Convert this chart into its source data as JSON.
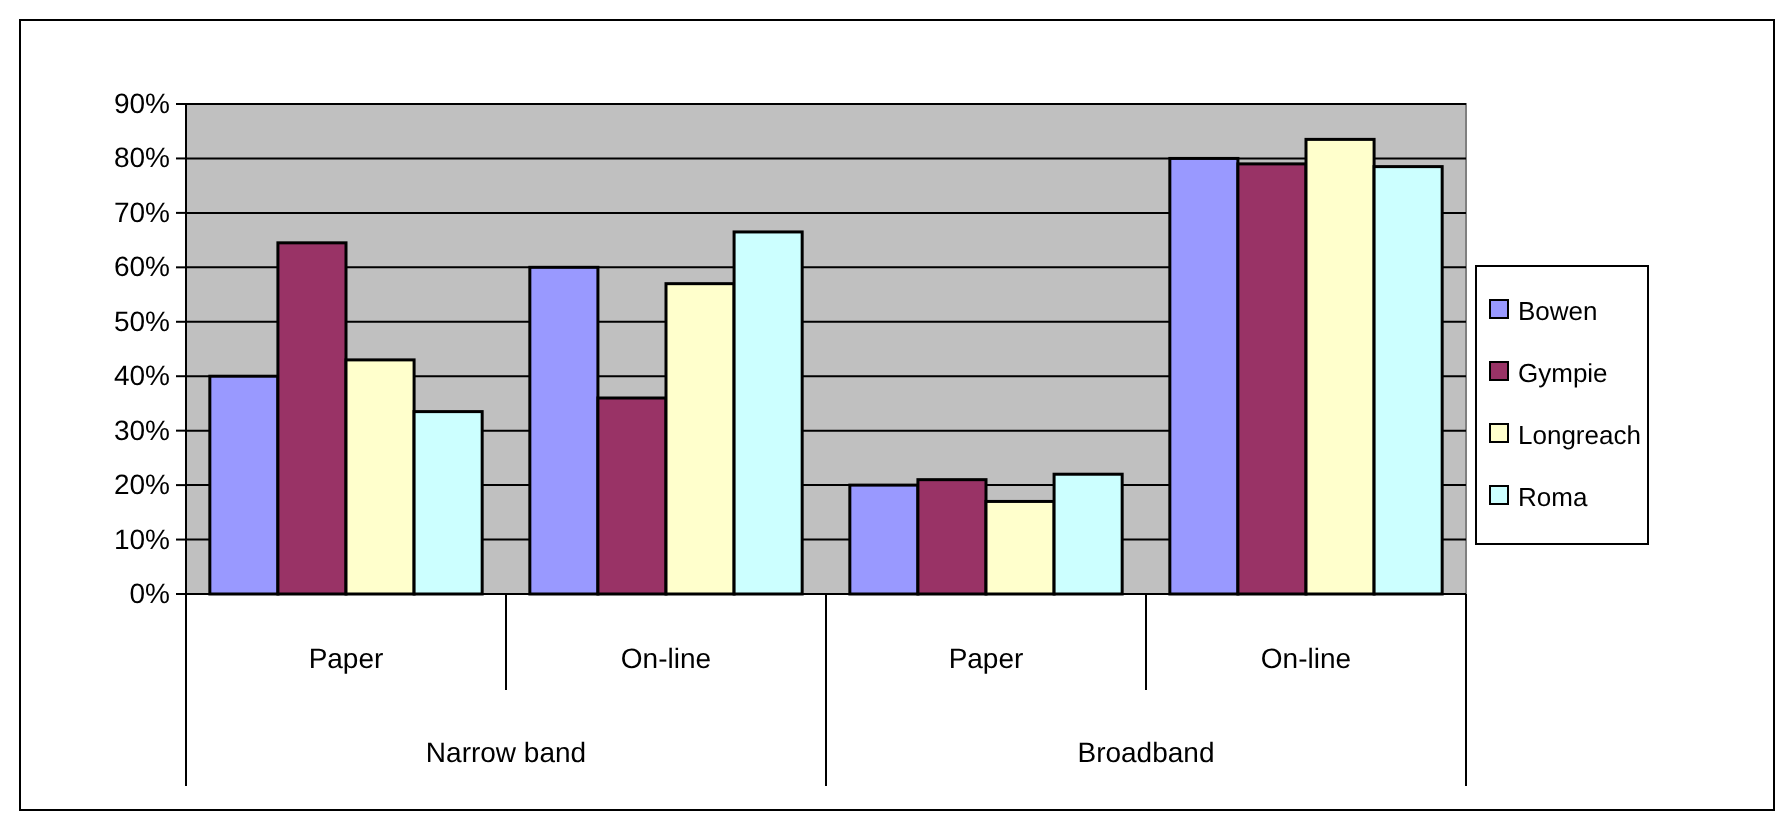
{
  "chart_data": {
    "type": "bar",
    "categories": [
      "Paper",
      "On-line",
      "Paper",
      "On-line"
    ],
    "annotations": [
      "Narrow band",
      "Broadband"
    ],
    "series": [
      {
        "name": "Bowen",
        "color": "#9999ff",
        "values": [
          40,
          60,
          20,
          80
        ]
      },
      {
        "name": "Gympie",
        "color": "#993366",
        "values": [
          64.5,
          36,
          21,
          79
        ]
      },
      {
        "name": "Longreach",
        "color": "#ffffcc",
        "values": [
          43,
          57,
          17,
          83.5
        ]
      },
      {
        "name": "Roma",
        "color": "#ccffff",
        "values": [
          33.5,
          66.5,
          22,
          78.5
        ]
      }
    ],
    "ylim": [
      0,
      90
    ],
    "yticks": [
      {
        "value": 0,
        "label": "0%"
      },
      {
        "value": 10,
        "label": "10%"
      },
      {
        "value": 20,
        "label": "20%"
      },
      {
        "value": 30,
        "label": "30%"
      },
      {
        "value": 40,
        "label": "40%"
      },
      {
        "value": 50,
        "label": "50%"
      },
      {
        "value": 60,
        "label": "60%"
      },
      {
        "value": 70,
        "label": "70%"
      },
      {
        "value": 80,
        "label": "80%"
      },
      {
        "value": 90,
        "label": "90%"
      }
    ],
    "grid": "y",
    "legend": "right"
  }
}
